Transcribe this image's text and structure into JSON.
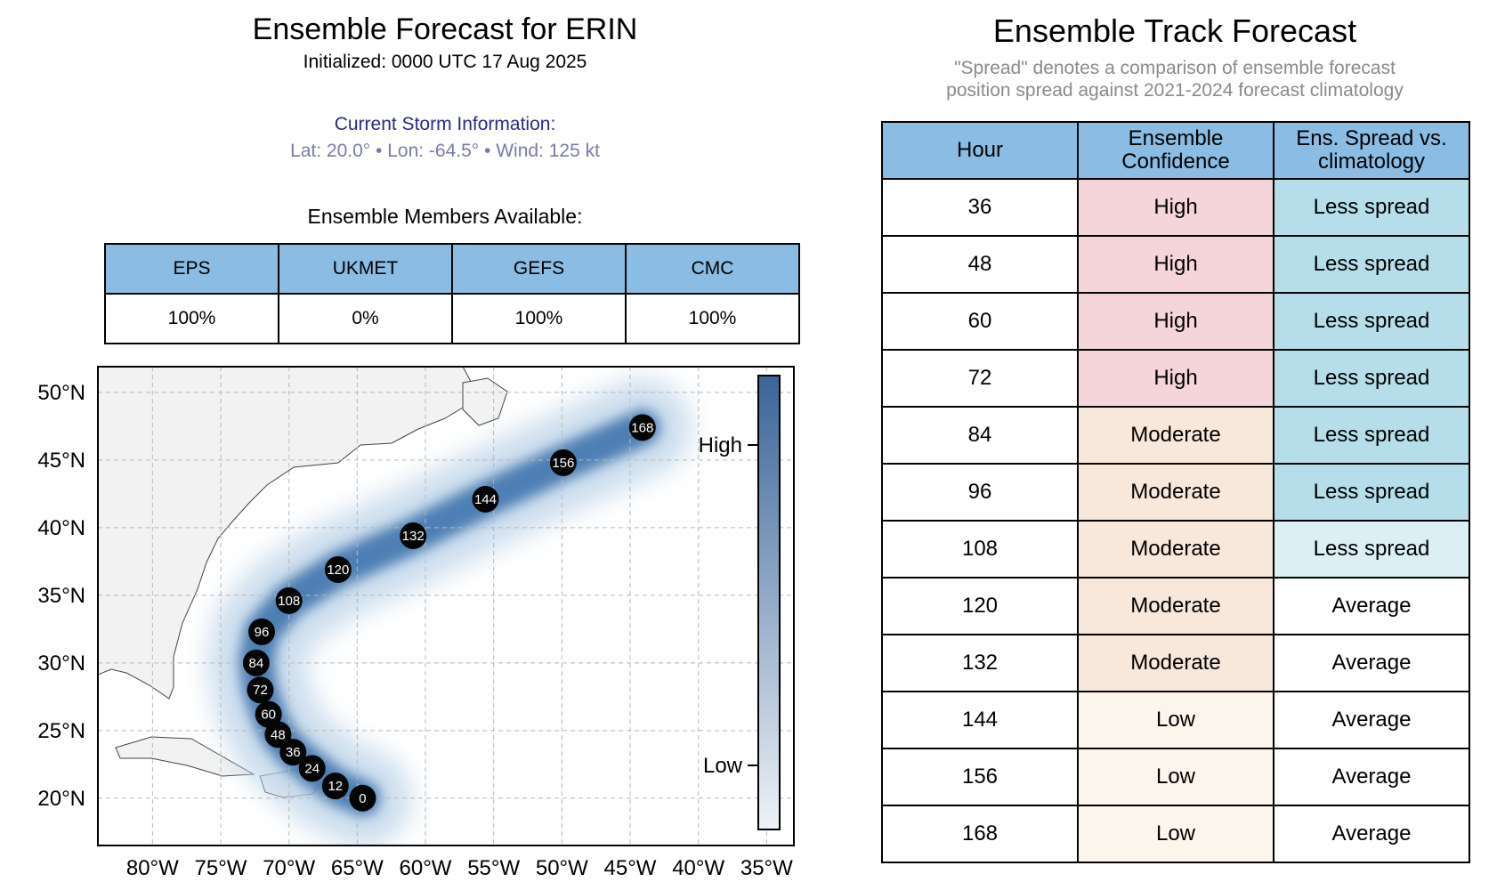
{
  "left": {
    "title": "Ensemble Forecast for ERIN",
    "initialized": "Initialized: 0000 UTC 17 Aug 2025",
    "current_heading": "Current Storm Information:",
    "current_values": "Lat: 20.0°  • Lon: -64.5°  • Wind: 125 kt",
    "members_heading": "Ensemble Members Available:",
    "members": [
      {
        "name": "EPS",
        "value": "100%"
      },
      {
        "name": "UKMET",
        "value": "0%"
      },
      {
        "name": "GEFS",
        "value": "100%"
      },
      {
        "name": "CMC",
        "value": "100%"
      }
    ]
  },
  "right": {
    "title": "Ensemble Track Forecast",
    "subtitle_line1": "\"Spread\" denotes a comparison of ensemble forecast",
    "subtitle_line2": "position spread against 2021-2024 forecast climatology",
    "headers": {
      "hour": "Hour",
      "conf1": "Ensemble",
      "conf2": "Confidence",
      "spread1": "Ens. Spread vs.",
      "spread2": "climatology"
    },
    "rows": [
      {
        "hour": "36",
        "confidence": "High",
        "spread": "Less spread",
        "conf_color": "#f5d5da",
        "spread_color": "#b5deea"
      },
      {
        "hour": "48",
        "confidence": "High",
        "spread": "Less spread",
        "conf_color": "#f5d5da",
        "spread_color": "#b5deea"
      },
      {
        "hour": "60",
        "confidence": "High",
        "spread": "Less spread",
        "conf_color": "#f5d5da",
        "spread_color": "#b5deea"
      },
      {
        "hour": "72",
        "confidence": "High",
        "spread": "Less spread",
        "conf_color": "#f5d5da",
        "spread_color": "#b5deea"
      },
      {
        "hour": "84",
        "confidence": "Moderate",
        "spread": "Less spread",
        "conf_color": "#f8e7db",
        "spread_color": "#b5deea"
      },
      {
        "hour": "96",
        "confidence": "Moderate",
        "spread": "Less spread",
        "conf_color": "#f8e7db",
        "spread_color": "#b5deea"
      },
      {
        "hour": "108",
        "confidence": "Moderate",
        "spread": "Less spread",
        "conf_color": "#f8e7db",
        "spread_color": "#dbeff4"
      },
      {
        "hour": "120",
        "confidence": "Moderate",
        "spread": "Average",
        "conf_color": "#f8e7db",
        "spread_color": "#ffffff"
      },
      {
        "hour": "132",
        "confidence": "Moderate",
        "spread": "Average",
        "conf_color": "#f8e7db",
        "spread_color": "#ffffff"
      },
      {
        "hour": "144",
        "confidence": "Low",
        "spread": "Average",
        "conf_color": "#fcf5ec",
        "spread_color": "#ffffff"
      },
      {
        "hour": "156",
        "confidence": "Low",
        "spread": "Average",
        "conf_color": "#fcf5ec",
        "spread_color": "#ffffff"
      },
      {
        "hour": "168",
        "confidence": "Low",
        "spread": "Average",
        "conf_color": "#fcf5ec",
        "spread_color": "#ffffff"
      }
    ]
  },
  "chart_data": {
    "type": "scatter",
    "xlim": [
      -84,
      -33
    ],
    "ylim": [
      16.5,
      51.9
    ],
    "x_ticks": [
      -80,
      -75,
      -70,
      -65,
      -60,
      -55,
      -50,
      -45,
      -40,
      -35
    ],
    "x_tick_labels": [
      "80°W",
      "75°W",
      "70°W",
      "65°W",
      "60°W",
      "55°W",
      "50°W",
      "45°W",
      "40°W",
      "35°W"
    ],
    "y_ticks": [
      20,
      25,
      30,
      35,
      40,
      45,
      50
    ],
    "y_tick_labels": [
      "20°N",
      "25°N",
      "30°N",
      "35°N",
      "40°N",
      "45°N",
      "50°N"
    ],
    "grid": true,
    "colorbar": {
      "high_label": "High",
      "low_label": "Low",
      "high_color": "#3a6598",
      "low_color": "#eef2f8"
    },
    "track": [
      {
        "hour": "0",
        "lon": -64.6,
        "lat": 20.0
      },
      {
        "hour": "12",
        "lon": -66.6,
        "lat": 20.9
      },
      {
        "hour": "24",
        "lon": -68.3,
        "lat": 22.2
      },
      {
        "hour": "36",
        "lon": -69.7,
        "lat": 23.4
      },
      {
        "hour": "48",
        "lon": -70.8,
        "lat": 24.7
      },
      {
        "hour": "60",
        "lon": -71.5,
        "lat": 26.2
      },
      {
        "hour": "72",
        "lon": -72.1,
        "lat": 28.0
      },
      {
        "hour": "84",
        "lon": -72.4,
        "lat": 30.0
      },
      {
        "hour": "96",
        "lon": -72.0,
        "lat": 32.3
      },
      {
        "hour": "108",
        "lon": -70.0,
        "lat": 34.6
      },
      {
        "hour": "120",
        "lon": -66.4,
        "lat": 36.9
      },
      {
        "hour": "132",
        "lon": -60.9,
        "lat": 39.4
      },
      {
        "hour": "144",
        "lon": -55.6,
        "lat": 42.1
      },
      {
        "hour": "156",
        "lon": -49.9,
        "lat": 44.8
      },
      {
        "hour": "168",
        "lon": -44.1,
        "lat": 47.4
      }
    ]
  }
}
